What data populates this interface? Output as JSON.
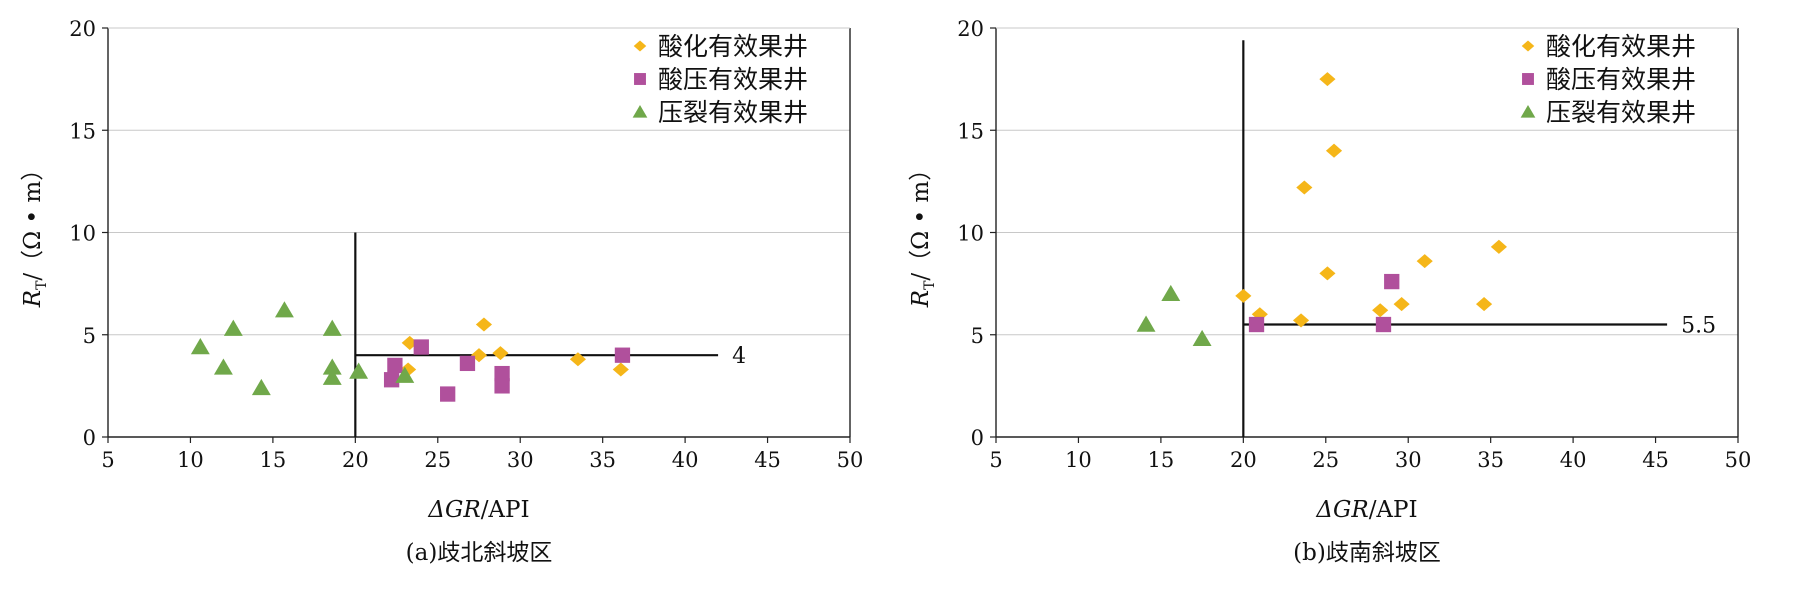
{
  "chart_data": [
    {
      "type": "scatter",
      "caption": "(a)歧北斜坡区",
      "xlabel_prefix": "ΔGR",
      "xlabel_suffix": "/API",
      "ylabel_main": "R",
      "ylabel_sub": "T",
      "ylabel_suffix": "/（Ω • m）",
      "xlim": [
        5,
        50
      ],
      "ylim": [
        0,
        20
      ],
      "xticks": [
        "5",
        "10",
        "15",
        "20",
        "25",
        "30",
        "35",
        "40",
        "45",
        "50"
      ],
      "yticks": [
        "0",
        "5",
        "10",
        "15",
        "20"
      ],
      "grid": "horizontal",
      "legend_position": "top-right",
      "series": [
        {
          "name": "酸化有效果井",
          "marker": "diamond",
          "color": "#f5b619",
          "points": [
            [
              23.3,
              4.6
            ],
            [
              27.8,
              5.5
            ],
            [
              27.5,
              4.0
            ],
            [
              28.8,
              4.1
            ],
            [
              33.5,
              3.8
            ],
            [
              36.1,
              3.3
            ],
            [
              23.2,
              3.3
            ]
          ]
        },
        {
          "name": "酸压有效果井",
          "marker": "square",
          "color": "#b0509c",
          "points": [
            [
              24.0,
              4.4
            ],
            [
              22.4,
              3.5
            ],
            [
              22.2,
              2.8
            ],
            [
              25.6,
              2.1
            ],
            [
              26.8,
              3.6
            ],
            [
              28.9,
              3.1
            ],
            [
              28.9,
              2.5
            ],
            [
              36.2,
              4.0
            ]
          ]
        },
        {
          "name": "压裂有效果井",
          "marker": "triangle",
          "color": "#70a84a",
          "points": [
            [
              10.6,
              4.4
            ],
            [
              12.0,
              3.4
            ],
            [
              12.6,
              5.3
            ],
            [
              14.3,
              2.4
            ],
            [
              15.7,
              6.2
            ],
            [
              18.6,
              5.3
            ],
            [
              18.6,
              3.4
            ],
            [
              18.6,
              2.9
            ],
            [
              20.2,
              3.2
            ],
            [
              23.0,
              3.0
            ]
          ]
        }
      ],
      "threshold_lines": [
        {
          "orientation": "vertical",
          "x": 20,
          "y_from": 0,
          "y_to": 10
        },
        {
          "orientation": "horizontal",
          "y": 4,
          "x_from": 20,
          "x_to": 42,
          "label": "4"
        }
      ]
    },
    {
      "type": "scatter",
      "caption": "(b)歧南斜坡区",
      "xlabel_prefix": "ΔGR",
      "xlabel_suffix": "/API",
      "ylabel_main": "R",
      "ylabel_sub": "T",
      "ylabel_suffix": "/（Ω • m）",
      "xlim": [
        5,
        50
      ],
      "ylim": [
        0,
        20
      ],
      "xticks": [
        "5",
        "10",
        "15",
        "20",
        "25",
        "30",
        "35",
        "40",
        "45",
        "50"
      ],
      "yticks": [
        "0",
        "5",
        "10",
        "15",
        "20"
      ],
      "grid": "horizontal",
      "legend_position": "top-right",
      "series": [
        {
          "name": "酸化有效果井",
          "marker": "diamond",
          "color": "#f5b619",
          "points": [
            [
              25.1,
              17.5
            ],
            [
              25.5,
              14.0
            ],
            [
              23.7,
              12.2
            ],
            [
              25.1,
              8.0
            ],
            [
              31.0,
              8.6
            ],
            [
              35.5,
              9.3
            ],
            [
              20.0,
              6.9
            ],
            [
              21.0,
              6.0
            ],
            [
              23.5,
              5.7
            ],
            [
              28.3,
              6.2
            ],
            [
              29.6,
              6.5
            ],
            [
              34.6,
              6.5
            ]
          ]
        },
        {
          "name": "酸压有效果井",
          "marker": "square",
          "color": "#b0509c",
          "points": [
            [
              20.8,
              5.5
            ],
            [
              28.5,
              5.5
            ],
            [
              29.0,
              7.6
            ]
          ]
        },
        {
          "name": "压裂有效果井",
          "marker": "triangle",
          "color": "#70a84a",
          "points": [
            [
              14.1,
              5.5
            ],
            [
              15.6,
              7.0
            ],
            [
              17.5,
              4.8
            ]
          ]
        }
      ],
      "threshold_lines": [
        {
          "orientation": "vertical",
          "x": 20,
          "y_from": 0,
          "y_to": 19.4
        },
        {
          "orientation": "horizontal",
          "y": 5.5,
          "x_from": 20,
          "x_to": 45.7,
          "label": "5.5"
        }
      ]
    }
  ]
}
